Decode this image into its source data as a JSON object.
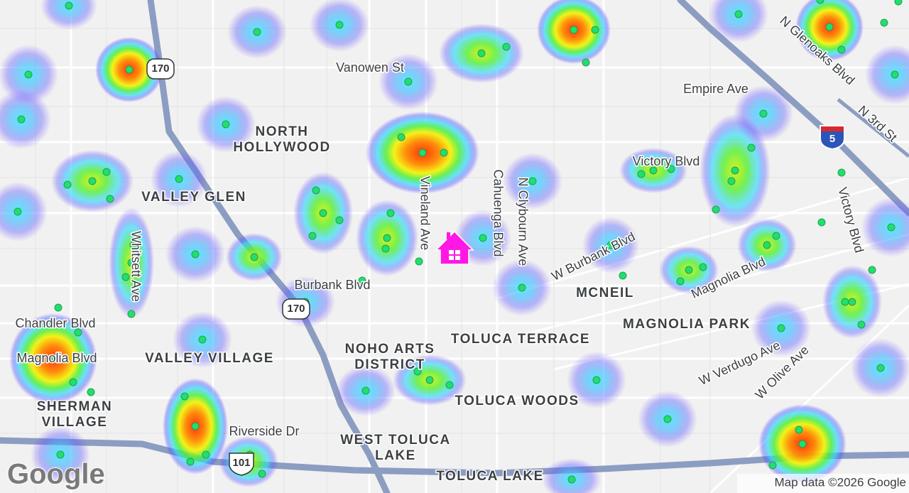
{
  "streets": [
    "Vanowen St",
    "Empire Ave",
    "N Glenoaks Blvd",
    "N 3rd St",
    "Victory Blvd",
    "Victory Blvd",
    "Vineland Ave",
    "Cahuenga Blvd",
    "N Clybourn Ave",
    "Whitsett Ave",
    "W Burbank Blvd",
    "Magnolia Blvd",
    "Burbank Blvd",
    "Chandler Blvd",
    "Magnolia Blvd",
    "Riverside Dr",
    "W Verdugo Ave",
    "W Olive Ave"
  ],
  "neighborhoods": [
    [
      "NORTH",
      "HOLLYWOOD"
    ],
    [
      "VALLEY GLEN"
    ],
    [
      "MCNEIL"
    ],
    [
      "MAGNOLIA PARK"
    ],
    [
      "TOLUCA TERRACE"
    ],
    [
      "NOHO ARTS",
      "DISTRICT"
    ],
    [
      "VALLEY VILLAGE"
    ],
    [
      "SHERMAN",
      "VILLAGE"
    ],
    [
      "TOLUCA WOODS"
    ],
    [
      "WEST TOLUCA",
      "LAKE"
    ],
    [
      "TOLUCA LAKE"
    ]
  ],
  "highway_shields": [
    "170",
    "170",
    "5",
    "101"
  ],
  "attribution": "Map data ©2026 Google",
  "logo": "Google"
}
